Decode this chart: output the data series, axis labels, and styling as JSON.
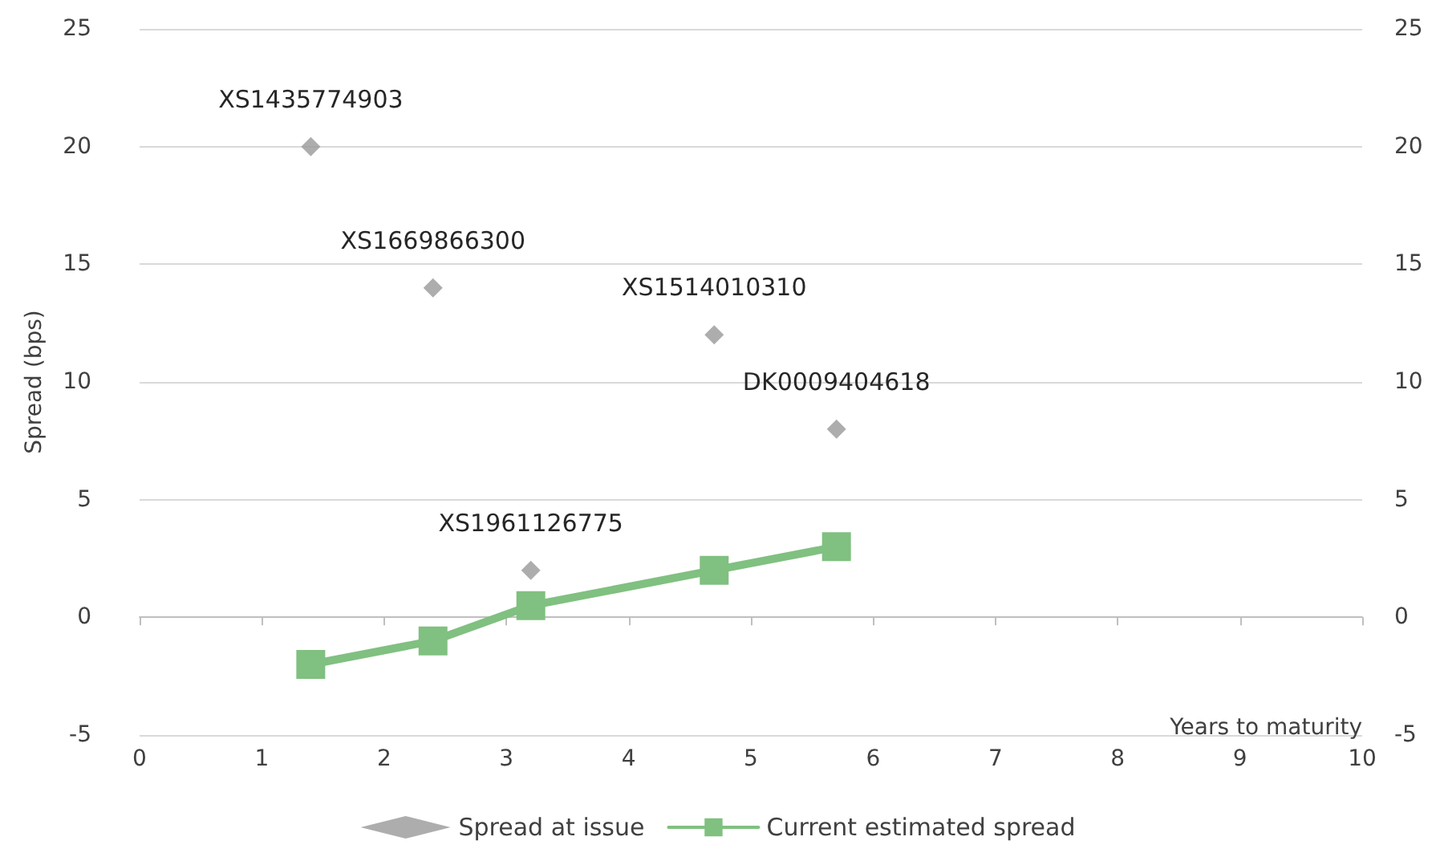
{
  "chart_data": {
    "type": "scatter",
    "xlabel": "Years to maturity",
    "ylabel": "Spread (bps)",
    "xlim": [
      0,
      10
    ],
    "xticks": [
      0,
      1,
      2,
      3,
      4,
      5,
      6,
      7,
      8,
      9,
      10
    ],
    "ylim": [
      -5,
      25
    ],
    "yticks": [
      -5,
      0,
      5,
      10,
      15,
      20,
      25
    ],
    "y2lim": [
      -5,
      25
    ],
    "y2ticks": [
      -5,
      0,
      5,
      10,
      15,
      20,
      25
    ],
    "grid": "y",
    "legend": "bottom",
    "series": [
      {
        "name": "Spread at issue",
        "marker": "diamond",
        "color": "#999999",
        "x": [
          1.4,
          2.4,
          4.7,
          5.7,
          3.2
        ],
        "values": [
          20,
          14,
          12,
          8,
          2
        ]
      },
      {
        "name": "Current estimated spread",
        "type": "line",
        "marker": "square",
        "line_style": "solid",
        "color": "#80c080",
        "x": [
          1.4,
          2.4,
          3.2,
          4.7,
          5.7
        ],
        "values": [
          -2,
          -1,
          0.5,
          2,
          3
        ]
      }
    ],
    "annotations": [
      {
        "text": "XS1435774903",
        "x": 1.4,
        "y": 20
      },
      {
        "text": "XS1669866300",
        "x": 2.4,
        "y": 14
      },
      {
        "text": "XS1514010310",
        "x": 4.7,
        "y": 12
      },
      {
        "text": "DK0009404618",
        "x": 5.7,
        "y": 8
      },
      {
        "text": "XS1961126775",
        "x": 3.2,
        "y": 2
      }
    ]
  }
}
